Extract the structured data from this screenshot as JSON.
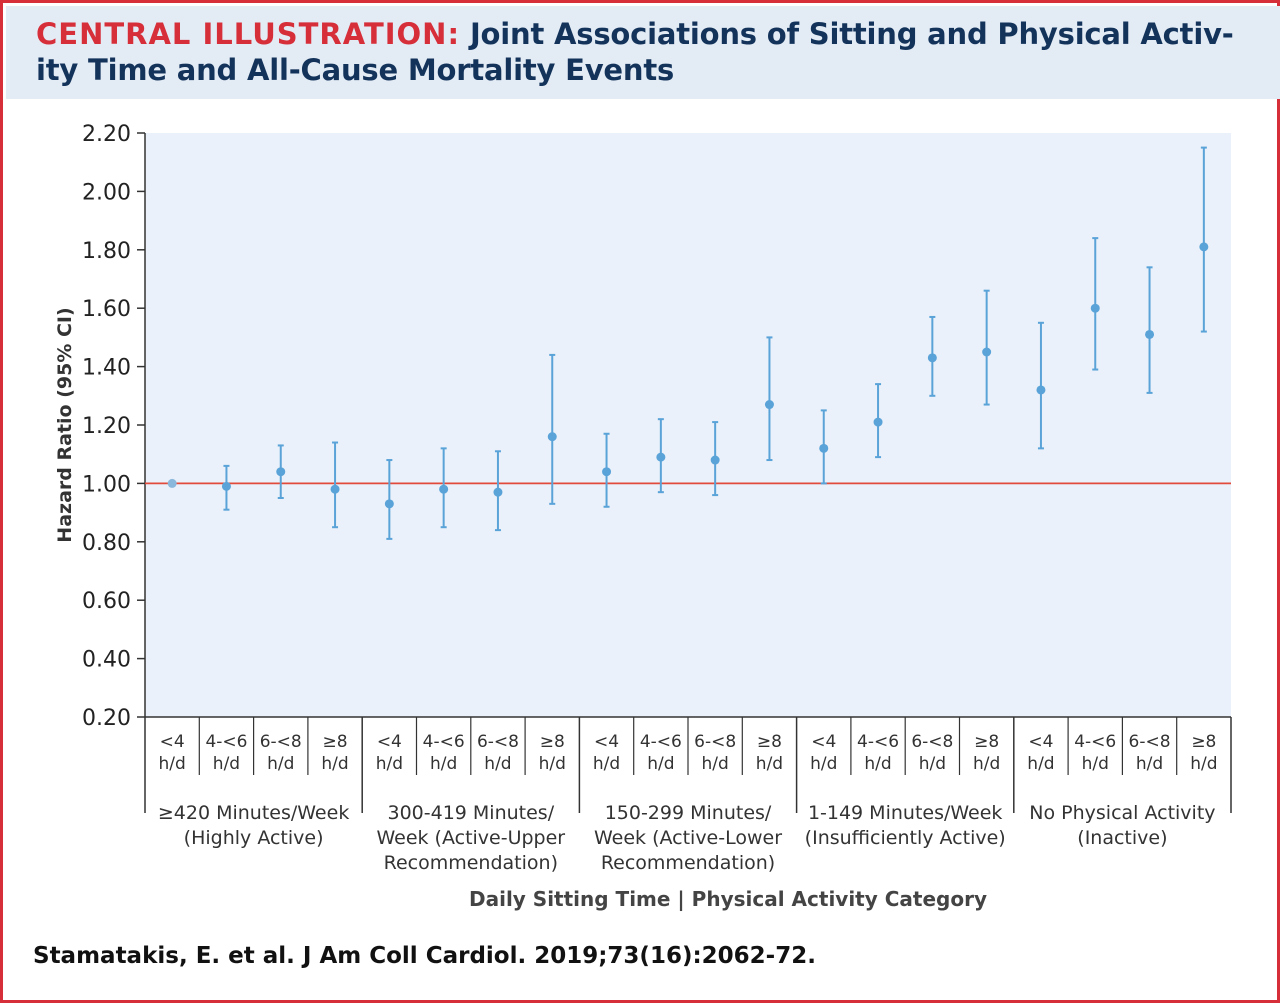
{
  "header": {
    "tag": "CENTRAL ILLUSTRATION:",
    "title": "Joint Associations of Sitting and Physical Activ-ity Time and All-Cause Mortality Events"
  },
  "citation": "Stamatakis, E. et al. J Am Coll Cardiol. 2019;73(16):2062-72.",
  "chart_data": {
    "type": "scatter",
    "title": "",
    "ylabel": "Hazard Ratio (95% CI)",
    "xlabel": "Daily Sitting Time | Physical Activity Category",
    "ylim": [
      0.2,
      2.2
    ],
    "yticks": [
      "0.20",
      "0.40",
      "0.60",
      "0.80",
      "1.00",
      "1.20",
      "1.40",
      "1.60",
      "1.80",
      "2.00",
      "2.20"
    ],
    "reference_line": 1.0,
    "grid": false,
    "colors": {
      "point": "#5aa3d8",
      "reference": "#e24b3b",
      "plot_bg": "#eaf1fa",
      "axis": "#333333"
    },
    "groups": [
      {
        "label_lines": [
          "≥420 Minutes/Week",
          "(Highly Active)"
        ],
        "points": [
          {
            "sitting": [
              "<4",
              "h/d"
            ],
            "hr": 1.0,
            "lower": 1.0,
            "upper": 1.0,
            "reference": true
          },
          {
            "sitting": [
              "4-<6",
              "h/d"
            ],
            "hr": 0.99,
            "lower": 0.91,
            "upper": 1.06
          },
          {
            "sitting": [
              "6-<8",
              "h/d"
            ],
            "hr": 1.04,
            "lower": 0.95,
            "upper": 1.13
          },
          {
            "sitting": [
              "≥8",
              "h/d"
            ],
            "hr": 0.98,
            "lower": 0.85,
            "upper": 1.14
          }
        ]
      },
      {
        "label_lines": [
          "300-419 Minutes/",
          "Week (Active-Upper",
          "Recommendation)"
        ],
        "points": [
          {
            "sitting": [
              "<4",
              "h/d"
            ],
            "hr": 0.93,
            "lower": 0.81,
            "upper": 1.08
          },
          {
            "sitting": [
              "4-<6",
              "h/d"
            ],
            "hr": 0.98,
            "lower": 0.85,
            "upper": 1.12
          },
          {
            "sitting": [
              "6-<8",
              "h/d"
            ],
            "hr": 0.97,
            "lower": 0.84,
            "upper": 1.11
          },
          {
            "sitting": [
              "≥8",
              "h/d"
            ],
            "hr": 1.16,
            "lower": 0.93,
            "upper": 1.44
          }
        ]
      },
      {
        "label_lines": [
          "150-299 Minutes/",
          "Week (Active-Lower",
          "Recommendation)"
        ],
        "points": [
          {
            "sitting": [
              "<4",
              "h/d"
            ],
            "hr": 1.04,
            "lower": 0.92,
            "upper": 1.17
          },
          {
            "sitting": [
              "4-<6",
              "h/d"
            ],
            "hr": 1.09,
            "lower": 0.97,
            "upper": 1.22
          },
          {
            "sitting": [
              "6-<8",
              "h/d"
            ],
            "hr": 1.08,
            "lower": 0.96,
            "upper": 1.21
          },
          {
            "sitting": [
              "≥8",
              "h/d"
            ],
            "hr": 1.27,
            "lower": 1.08,
            "upper": 1.5
          }
        ]
      },
      {
        "label_lines": [
          "1-149 Minutes/Week",
          "(Insufficiently Active)"
        ],
        "points": [
          {
            "sitting": [
              "<4",
              "h/d"
            ],
            "hr": 1.12,
            "lower": 1.0,
            "upper": 1.25
          },
          {
            "sitting": [
              "4-<6",
              "h/d"
            ],
            "hr": 1.21,
            "lower": 1.09,
            "upper": 1.34
          },
          {
            "sitting": [
              "6-<8",
              "h/d"
            ],
            "hr": 1.43,
            "lower": 1.3,
            "upper": 1.57
          },
          {
            "sitting": [
              "≥8",
              "h/d"
            ],
            "hr": 1.45,
            "lower": 1.27,
            "upper": 1.66
          }
        ]
      },
      {
        "label_lines": [
          "No Physical Activity",
          "(Inactive)"
        ],
        "points": [
          {
            "sitting": [
              "<4",
              "h/d"
            ],
            "hr": 1.32,
            "lower": 1.12,
            "upper": 1.55
          },
          {
            "sitting": [
              "4-<6",
              "h/d"
            ],
            "hr": 1.6,
            "lower": 1.39,
            "upper": 1.84
          },
          {
            "sitting": [
              "6-<8",
              "h/d"
            ],
            "hr": 1.51,
            "lower": 1.31,
            "upper": 1.74
          },
          {
            "sitting": [
              "≥8",
              "h/d"
            ],
            "hr": 1.81,
            "lower": 1.52,
            "upper": 2.15
          }
        ]
      }
    ]
  }
}
